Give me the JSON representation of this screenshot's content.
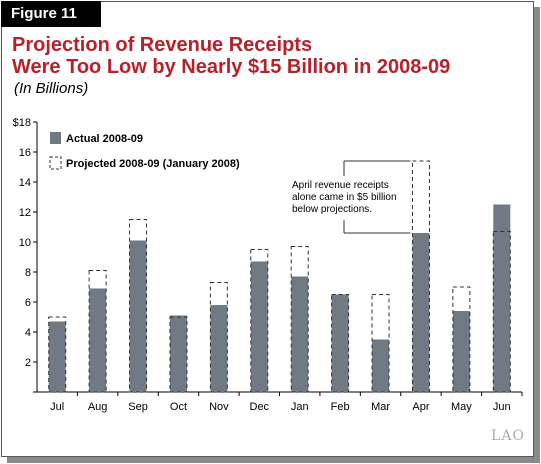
{
  "figure_label": "Figure 11",
  "title_line1": "Projection of Revenue Receipts",
  "title_line2": "Were Too Low by Nearly $15 Billion in 2008-09",
  "subtitle": "(In Billions)",
  "logo": "LAO",
  "colors": {
    "actual": "#6f7a85",
    "projected_border": "#333333",
    "title": "#b8202a"
  },
  "chart_data": {
    "type": "bar",
    "categories": [
      "Jul",
      "Aug",
      "Sep",
      "Oct",
      "Nov",
      "Dec",
      "Jan",
      "Feb",
      "Mar",
      "Apr",
      "May",
      "Jun"
    ],
    "series": [
      {
        "name": "Actual 2008-09",
        "values": [
          4.7,
          6.9,
          10.1,
          5.1,
          5.8,
          8.7,
          7.7,
          6.5,
          3.5,
          10.6,
          5.4,
          12.5
        ]
      },
      {
        "name": "Projected 2008-09 (January 2008)",
        "values": [
          5.0,
          8.1,
          11.5,
          5.0,
          7.3,
          9.5,
          9.7,
          6.5,
          6.5,
          15.4,
          7.0,
          10.7
        ]
      }
    ],
    "ylim": [
      0,
      18
    ],
    "yticks": [
      "",
      "2",
      "4",
      "6",
      "8",
      "10",
      "12",
      "14",
      "16",
      "$18"
    ],
    "legend_position": "top-left",
    "annotation": [
      "April revenue receipts",
      "alone came in $5 billion",
      "below projections."
    ]
  }
}
